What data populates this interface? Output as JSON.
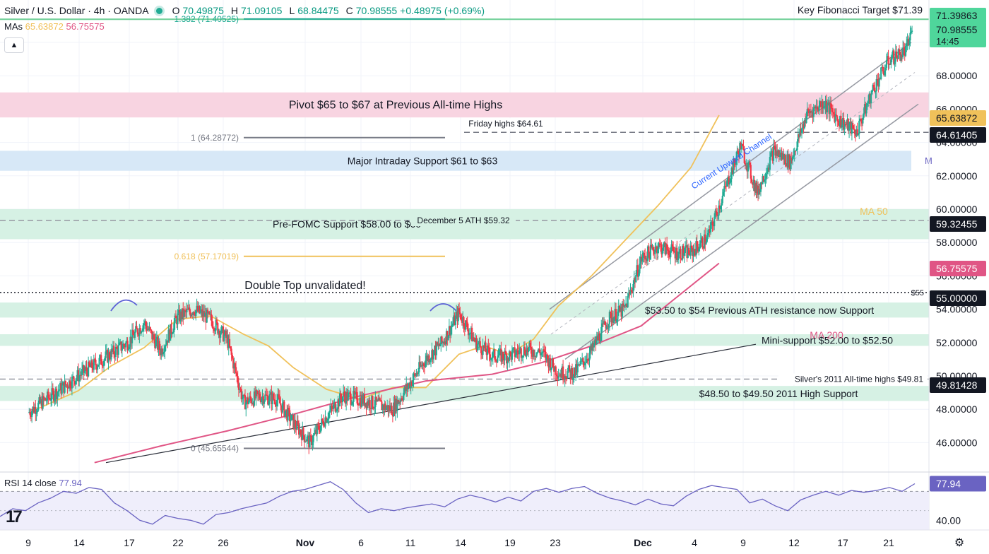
{
  "header": {
    "symbol": "Silver / U.S. Dollar · 4h · OANDA",
    "open_label": "O",
    "open": "70.49875",
    "high_label": "H",
    "high": "71.09105",
    "low_label": "L",
    "low": "68.84475",
    "close_label": "C",
    "close": "70.98555",
    "change": "+0.48975 (+0.69%)"
  },
  "mas": {
    "label": "MAs",
    "ma50_value": "65.63872",
    "ma200_value": "56.75575"
  },
  "rsi": {
    "label": "RSI",
    "params": "14 close",
    "value": "77.94"
  },
  "colors": {
    "up": "#22ab94",
    "down": "#f23645",
    "ma50": "#f0c15a",
    "ma200": "#e05585",
    "pivot_zone": "#f8d4e1",
    "blue_zone": "#d7e8f7",
    "green_zone": "#d6f1e4",
    "rsi": "#6a63c2",
    "fib": "#f0c15a"
  },
  "chart_data": {
    "type": "candlestick",
    "title": "Silver / U.S. Dollar · 4h · OANDA",
    "x_tick_labels": [
      "9",
      "14",
      "17",
      "22",
      "26",
      "Nov",
      "6",
      "11",
      "14",
      "19",
      "23",
      "Dec",
      "4",
      "9",
      "12",
      "17",
      "21"
    ],
    "y_tick_labels": [
      "46.00000",
      "48.00000",
      "50.00000",
      "52.00000",
      "54.00000",
      "56.00000",
      "58.00000",
      "60.00000",
      "62.00000",
      "64.00000",
      "66.00000",
      "68.00000",
      "70.00000"
    ],
    "ylim": [
      44.6,
      72.0
    ],
    "price_tags": [
      {
        "value": "71.39863",
        "style": "green"
      },
      {
        "value": "70.98555",
        "time": "14:45",
        "style": "green"
      },
      {
        "value": "65.63872",
        "style": "ma50"
      },
      {
        "value": "64.61405",
        "style": "dark"
      },
      {
        "value": "59.32455",
        "style": "dark"
      },
      {
        "value": "56.75575",
        "style": "ma200"
      },
      {
        "value": "55.00000",
        "style": "dark"
      },
      {
        "value": "49.81428",
        "style": "dark"
      }
    ],
    "zones": [
      {
        "label": "Pivot $65 to $67 at Previous All-time Highs",
        "from": 65.5,
        "to": 67.0,
        "kind": "pivot"
      },
      {
        "label": "Major Intraday Support $61 to $63",
        "from": 62.3,
        "to": 63.5,
        "kind": "blue"
      },
      {
        "label": "Pre-FOMC Support $58.00 to $60",
        "from": 58.2,
        "to": 60.0,
        "kind": "green"
      },
      {
        "label": "$53.50 to $54 Previous ATH resistance now Support",
        "from": 53.5,
        "to": 54.4,
        "kind": "green"
      },
      {
        "label": "Mini-support $52.00 to $52.50",
        "from": 51.8,
        "to": 52.5,
        "kind": "green"
      },
      {
        "label": "$48.50 to $49.50 2011 High Support",
        "from": 48.5,
        "to": 49.4,
        "kind": "green"
      }
    ],
    "levels": [
      {
        "label": "Key Fibonacci Target $71.39",
        "value": 71.39
      },
      {
        "label": "Friday highs $64.61",
        "value": 64.61
      },
      {
        "label": "December 5 ATH $59.32",
        "value": 59.32
      },
      {
        "label": "$55",
        "value": 55.0
      },
      {
        "label": "Silver's 2011 All-time highs $49.81",
        "value": 49.81
      }
    ],
    "fib_levels": [
      {
        "label": "1.382 (71.40525)",
        "value": 71.40525
      },
      {
        "label": "1 (64.28772)",
        "value": 64.28772
      },
      {
        "label": "0.618 (57.17019)",
        "value": 57.17019
      },
      {
        "label": "0 (45.65544)",
        "value": 45.65544
      }
    ],
    "annotations": {
      "double_top": "Double Top unvalidated!",
      "channel": "Current Upward Channel",
      "ma50": "MA 50",
      "ma200": "MA 200",
      "edge_glyph": "M"
    },
    "ma50_x": [
      0.5,
      3,
      5,
      7,
      9,
      11,
      13,
      14.5,
      16,
      18,
      20,
      22,
      24,
      26,
      27.5,
      29,
      30.5,
      32,
      34,
      36,
      38,
      40,
      41.7
    ],
    "ma50": [
      48.0,
      49.1,
      50.6,
      51.7,
      53.4,
      53.6,
      52.5,
      51.8,
      50.5,
      49.2,
      48.6,
      49.3,
      49.3,
      51.3,
      51.8,
      51.3,
      52.2,
      54.2,
      56.0,
      58.1,
      60.2,
      62.5,
      65.64
    ],
    "ma200_x": [
      4,
      8,
      12,
      16,
      20,
      24,
      28,
      31,
      34,
      37,
      39,
      41.7
    ],
    "ma200": [
      44.8,
      45.8,
      46.7,
      47.7,
      48.8,
      49.7,
      50.1,
      50.8,
      51.8,
      53.0,
      54.6,
      56.76
    ],
    "rsi_ylim": [
      30,
      90
    ],
    "rsi_tick_labels": [
      "40.00"
    ],
    "rsi_values": [
      44,
      52,
      50,
      58,
      63,
      70,
      68,
      74,
      72,
      58,
      50,
      40,
      36,
      45,
      42,
      40,
      36,
      46,
      48,
      52,
      55,
      58,
      65,
      70,
      72,
      76,
      80,
      72,
      58,
      48,
      52,
      50,
      53,
      55,
      57,
      54,
      62,
      66,
      63,
      59,
      64,
      60,
      70,
      73,
      69,
      73,
      75,
      68,
      63,
      60,
      56,
      62,
      57,
      55,
      65,
      72,
      76,
      74,
      72,
      58,
      62,
      55,
      50,
      61,
      66,
      70,
      66,
      71,
      69,
      71,
      74,
      70,
      77.94
    ]
  }
}
